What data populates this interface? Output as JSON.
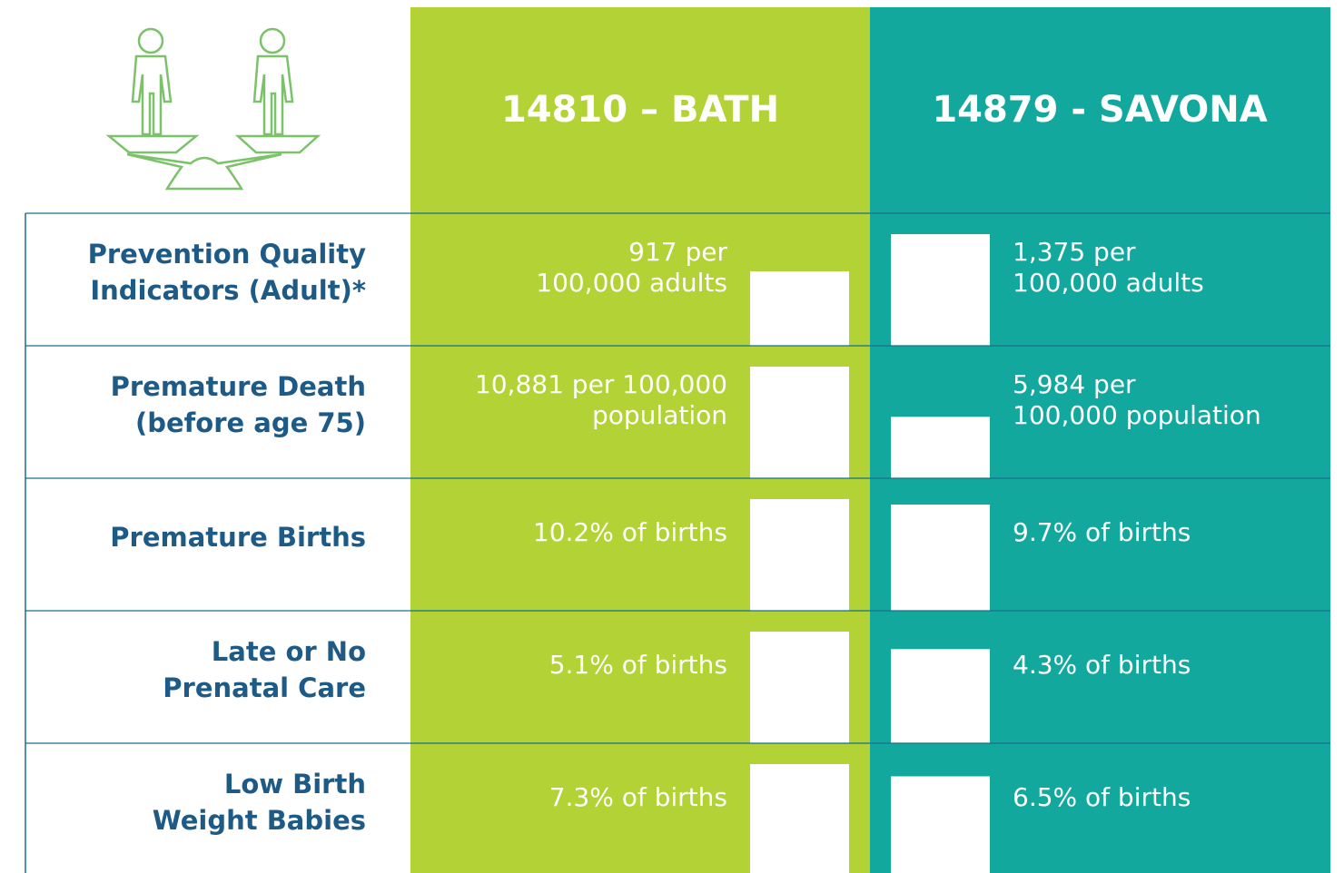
{
  "header": {
    "left": "14810 – BATH",
    "right": "14879 - SAVONA"
  },
  "rows": [
    {
      "label": [
        "Prevention Quality",
        "Indicators (Adult)*"
      ],
      "left": {
        "value": 917,
        "text": [
          "917 per",
          "100,000 adults"
        ]
      },
      "right": {
        "value": 1375,
        "text": [
          "1,375 per",
          "100,000 adults"
        ]
      }
    },
    {
      "label": [
        "Premature Death",
        "(before age 75)"
      ],
      "left": {
        "value": 10881,
        "text": [
          "10,881 per 100,000",
          "population"
        ]
      },
      "right": {
        "value": 5984,
        "text": [
          "5,984 per",
          "100,000 population"
        ]
      }
    },
    {
      "label": [
        "Premature Births"
      ],
      "left": {
        "value": 10.2,
        "text": [
          "10.2% of births"
        ]
      },
      "right": {
        "value": 9.7,
        "text": [
          "9.7% of births"
        ]
      }
    },
    {
      "label": [
        "Late or No",
        "Prenatal Care"
      ],
      "left": {
        "value": 5.1,
        "text": [
          "5.1% of births"
        ]
      },
      "right": {
        "value": 4.3,
        "text": [
          "4.3% of births"
        ]
      }
    },
    {
      "label": [
        "Low Birth",
        "Weight Babies"
      ],
      "left": {
        "value": 7.3,
        "text": [
          "7.3% of births"
        ]
      },
      "right": {
        "value": 6.5,
        "text": [
          "6.5% of births"
        ]
      }
    }
  ]
}
